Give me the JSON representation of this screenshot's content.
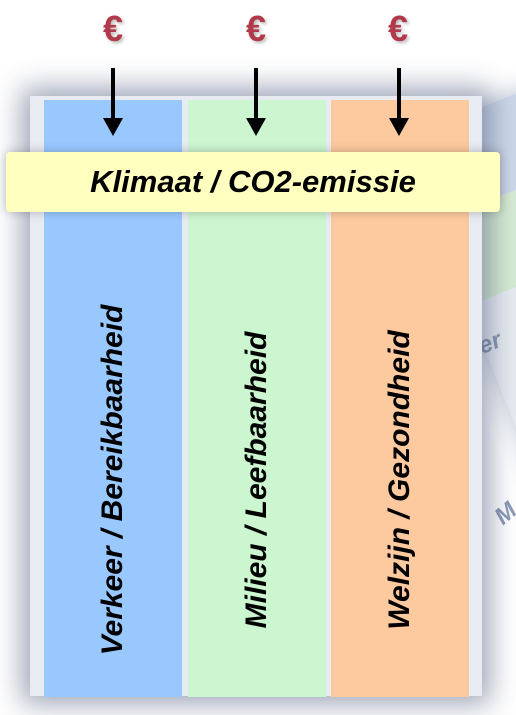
{
  "banner": {
    "title": "Klimaat / CO2-emissie"
  },
  "columns": [
    {
      "label": "Verkeer / Bereikbaarheid"
    },
    {
      "label": "Milieu / Leefbaarheid"
    },
    {
      "label": "Welzijn / Gezondheid"
    }
  ],
  "funding": {
    "symbol": "€"
  },
  "background": {
    "fragments": [
      "eer",
      "M"
    ]
  },
  "colors": {
    "verkeer": "#99c8ff",
    "milieu": "#ccf6cf",
    "welzijn": "#fdc99e",
    "banner": "#ffffc0",
    "euro": "#b03a4a"
  },
  "icons": [
    "euro-icon",
    "down-arrow-icon"
  ]
}
